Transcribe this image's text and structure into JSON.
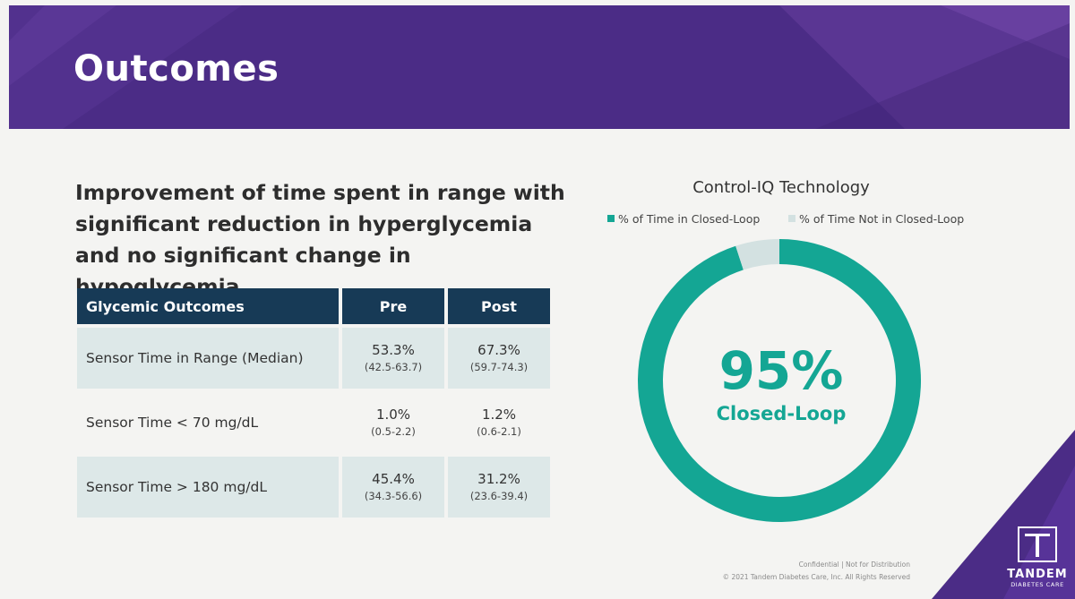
{
  "slide": {
    "title": "Outcomes",
    "subtitle": "Improvement of time spent in range with significant reduction in hyperglycemia and no significant change in hypoglycemia"
  },
  "table": {
    "headers": [
      "Glycemic Outcomes",
      "Pre",
      "Post"
    ],
    "rows": [
      {
        "label": "Sensor Time in Range (Median)",
        "pre": "53.3%",
        "pre_ci": "(42.5-63.7)",
        "post": "67.3%",
        "post_ci": "(59.7-74.3)"
      },
      {
        "label": "Sensor Time < 70 mg/dL",
        "pre": "1.0%",
        "pre_ci": "(0.5-2.2)",
        "post": "1.2%",
        "post_ci": "(0.6-2.1)"
      },
      {
        "label": "Sensor Time > 180 mg/dL",
        "pre": "45.4%",
        "pre_ci": "(34.3-56.6)",
        "post": "31.2%",
        "post_ci": "(23.6-39.4)"
      }
    ]
  },
  "chart_data": {
    "type": "pie",
    "title": "Control-IQ Technology",
    "categories": [
      "% of Time in Closed-Loop",
      "% of Time Not in Closed-Loop"
    ],
    "values": [
      95,
      5
    ],
    "colors": [
      "#14a694",
      "#d3e1e1"
    ],
    "center_value": "95%",
    "center_label": "Closed-Loop",
    "legend_position": "top"
  },
  "footer": {
    "line1": "Confidential | Not for Distribution",
    "line2": "© 2021 Tandem Diabetes Care, Inc. All Rights Reserved"
  },
  "logo": {
    "name": "TANDEM",
    "sub": "DIABETES CARE"
  },
  "colors": {
    "header": "#4b2c86",
    "table_header": "#173a56",
    "accent": "#14a694"
  }
}
